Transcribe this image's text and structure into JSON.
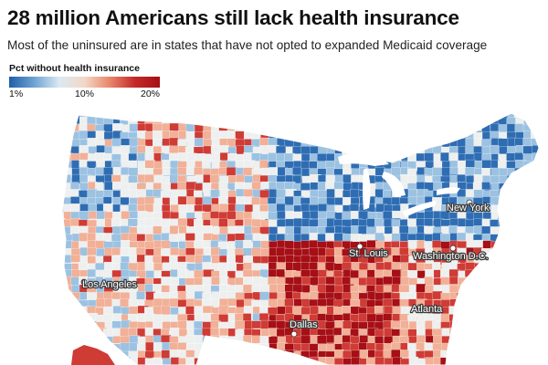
{
  "header": {
    "title": "28 million Americans still lack health insurance",
    "subtitle": "Most of the uninsured are in states that have not opted to expanded Medicaid coverage"
  },
  "legend": {
    "title": "Pct without health insurance",
    "ticks": [
      "1%",
      "10%",
      "20%"
    ],
    "colors": [
      "#1f5fa8",
      "#6fa3d2",
      "#dce9f2",
      "#f3d8c8",
      "#e8876b",
      "#c42a2a",
      "#a50f15"
    ]
  },
  "cities": [
    {
      "name": "Los Angeles"
    },
    {
      "name": "St. Louis"
    },
    {
      "name": "Washington D.C."
    },
    {
      "name": "New York"
    },
    {
      "name": "Atlanta"
    },
    {
      "name": "Dallas"
    }
  ],
  "map_colors": {
    "low": "#2f6db3",
    "mid_low": "#9cc2e2",
    "mid": "#eef0f0",
    "mid_high": "#f1b097",
    "high": "#cf3b35",
    "very_high": "#a50f15"
  }
}
